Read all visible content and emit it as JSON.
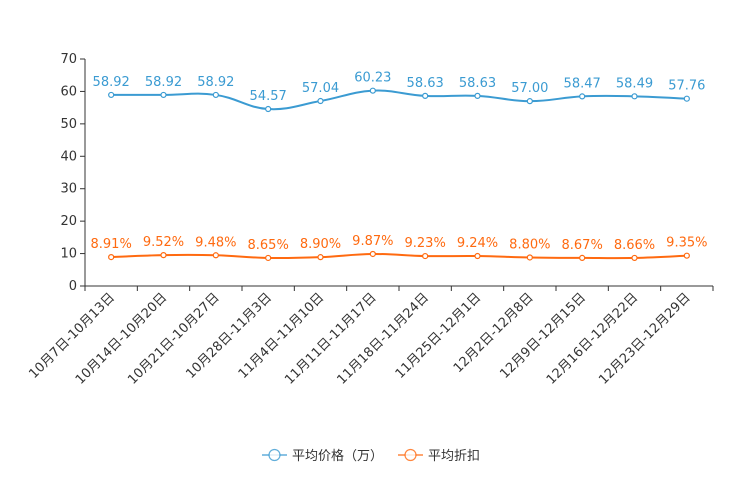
{
  "chart_data": {
    "type": "line",
    "categories": [
      "10月7日-10月13日",
      "10月14日-10月20日",
      "10月21日-10月27日",
      "10月28日-11月3日",
      "11月4日-11月10日",
      "11月11日-11月17日",
      "11月18日-11月24日",
      "11月25日-12月1日",
      "12月2日-12月8日",
      "12月9日-12月15日",
      "12月16日-12月22日",
      "12月23日-12月29日"
    ],
    "series": [
      {
        "name": "平均价格（万）",
        "color": "#3b9bd2",
        "values": [
          58.92,
          58.92,
          58.92,
          54.57,
          57.04,
          60.23,
          58.63,
          58.63,
          57.0,
          58.47,
          58.49,
          57.76
        ],
        "labels": [
          "58.92",
          "58.92",
          "58.92",
          "54.57",
          "57.04",
          "60.23",
          "58.63",
          "58.63",
          "57.00",
          "58.47",
          "58.49",
          "57.76"
        ]
      },
      {
        "name": "平均折扣",
        "color": "#ff6a10",
        "values": [
          8.91,
          9.52,
          9.48,
          8.65,
          8.9,
          9.87,
          9.23,
          9.24,
          8.8,
          8.67,
          8.66,
          9.35
        ],
        "labels": [
          "8.91%",
          "9.52%",
          "9.48%",
          "8.65%",
          "8.90%",
          "9.87%",
          "9.23%",
          "9.24%",
          "8.80%",
          "8.67%",
          "8.66%",
          "9.35%"
        ]
      }
    ],
    "yticks": [
      "0",
      "10",
      "20",
      "30",
      "40",
      "50",
      "60",
      "70"
    ],
    "ylim": [
      0,
      70
    ],
    "grid": false,
    "legend": "bottom-center",
    "title": "",
    "xlabel": "",
    "ylabel": ""
  }
}
